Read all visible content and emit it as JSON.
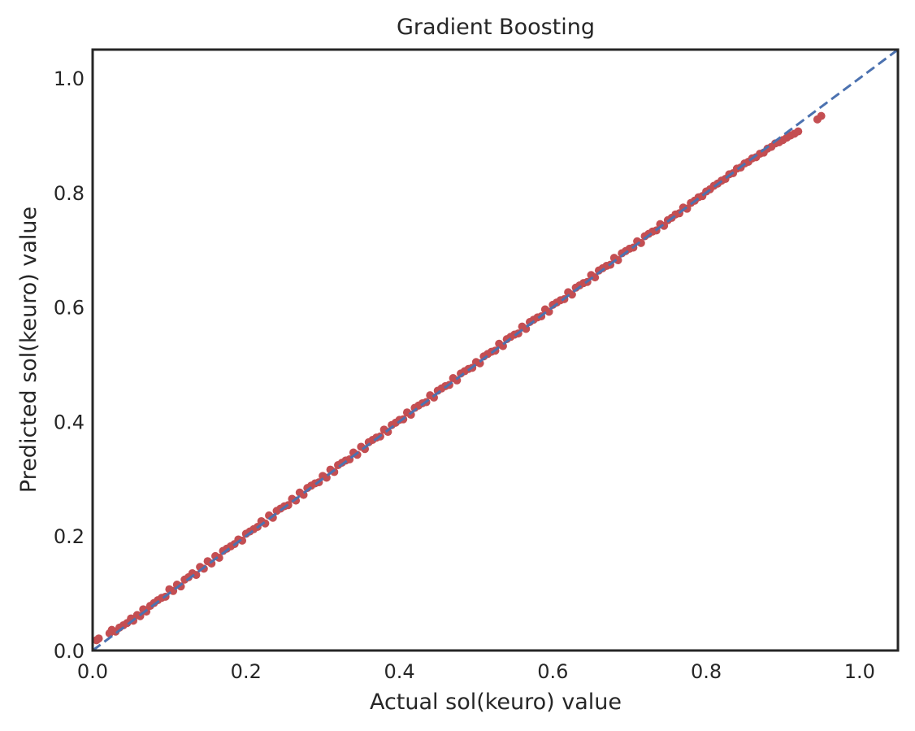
{
  "chart_data": {
    "type": "scatter",
    "title": "Gradient Boosting",
    "xlabel": "Actual sol(keuro) value",
    "ylabel": "Predicted sol(keuro) value",
    "xlim": [
      0.0,
      1.05
    ],
    "ylim": [
      0.0,
      1.05
    ],
    "xticks": [
      "0.0",
      "0.2",
      "0.4",
      "0.6",
      "0.8",
      "1.0"
    ],
    "yticks": [
      "0.0",
      "0.2",
      "0.4",
      "0.6",
      "0.8",
      "1.0"
    ],
    "grid": false,
    "reference_line": {
      "style": "dashed",
      "color": "#4c72b0",
      "from": [
        0.0,
        0.0
      ],
      "to": [
        1.05,
        1.05
      ]
    },
    "point_color": "#c44e52",
    "points": [
      [
        0.005,
        0.018
      ],
      [
        0.008,
        0.021
      ],
      [
        0.022,
        0.03
      ],
      [
        0.025,
        0.036
      ],
      [
        0.03,
        0.033
      ],
      [
        0.035,
        0.04
      ],
      [
        0.04,
        0.044
      ],
      [
        0.045,
        0.048
      ],
      [
        0.05,
        0.056
      ],
      [
        0.053,
        0.052
      ],
      [
        0.058,
        0.062
      ],
      [
        0.062,
        0.06
      ],
      [
        0.066,
        0.072
      ],
      [
        0.07,
        0.068
      ],
      [
        0.075,
        0.078
      ],
      [
        0.08,
        0.083
      ],
      [
        0.085,
        0.088
      ],
      [
        0.09,
        0.092
      ],
      [
        0.095,
        0.094
      ],
      [
        0.1,
        0.107
      ],
      [
        0.105,
        0.104
      ],
      [
        0.11,
        0.115
      ],
      [
        0.115,
        0.112
      ],
      [
        0.12,
        0.124
      ],
      [
        0.125,
        0.128
      ],
      [
        0.13,
        0.135
      ],
      [
        0.135,
        0.132
      ],
      [
        0.14,
        0.146
      ],
      [
        0.145,
        0.143
      ],
      [
        0.15,
        0.156
      ],
      [
        0.155,
        0.152
      ],
      [
        0.16,
        0.165
      ],
      [
        0.165,
        0.162
      ],
      [
        0.17,
        0.174
      ],
      [
        0.175,
        0.178
      ],
      [
        0.18,
        0.182
      ],
      [
        0.185,
        0.186
      ],
      [
        0.19,
        0.194
      ],
      [
        0.195,
        0.192
      ],
      [
        0.2,
        0.204
      ],
      [
        0.205,
        0.208
      ],
      [
        0.21,
        0.212
      ],
      [
        0.215,
        0.216
      ],
      [
        0.22,
        0.226
      ],
      [
        0.225,
        0.222
      ],
      [
        0.23,
        0.236
      ],
      [
        0.235,
        0.232
      ],
      [
        0.24,
        0.244
      ],
      [
        0.245,
        0.248
      ],
      [
        0.25,
        0.252
      ],
      [
        0.255,
        0.254
      ],
      [
        0.26,
        0.265
      ],
      [
        0.265,
        0.262
      ],
      [
        0.27,
        0.276
      ],
      [
        0.275,
        0.272
      ],
      [
        0.28,
        0.284
      ],
      [
        0.285,
        0.288
      ],
      [
        0.29,
        0.292
      ],
      [
        0.295,
        0.294
      ],
      [
        0.3,
        0.305
      ],
      [
        0.305,
        0.302
      ],
      [
        0.31,
        0.316
      ],
      [
        0.315,
        0.312
      ],
      [
        0.32,
        0.324
      ],
      [
        0.325,
        0.328
      ],
      [
        0.33,
        0.332
      ],
      [
        0.335,
        0.334
      ],
      [
        0.34,
        0.346
      ],
      [
        0.345,
        0.342
      ],
      [
        0.35,
        0.356
      ],
      [
        0.355,
        0.352
      ],
      [
        0.36,
        0.364
      ],
      [
        0.365,
        0.368
      ],
      [
        0.37,
        0.372
      ],
      [
        0.375,
        0.374
      ],
      [
        0.38,
        0.386
      ],
      [
        0.385,
        0.382
      ],
      [
        0.39,
        0.394
      ],
      [
        0.395,
        0.398
      ],
      [
        0.4,
        0.403
      ],
      [
        0.405,
        0.404
      ],
      [
        0.41,
        0.416
      ],
      [
        0.415,
        0.412
      ],
      [
        0.42,
        0.424
      ],
      [
        0.425,
        0.428
      ],
      [
        0.43,
        0.432
      ],
      [
        0.435,
        0.434
      ],
      [
        0.44,
        0.446
      ],
      [
        0.445,
        0.442
      ],
      [
        0.45,
        0.454
      ],
      [
        0.455,
        0.458
      ],
      [
        0.46,
        0.462
      ],
      [
        0.465,
        0.464
      ],
      [
        0.47,
        0.476
      ],
      [
        0.475,
        0.472
      ],
      [
        0.48,
        0.484
      ],
      [
        0.485,
        0.488
      ],
      [
        0.49,
        0.492
      ],
      [
        0.495,
        0.494
      ],
      [
        0.5,
        0.504
      ],
      [
        0.505,
        0.502
      ],
      [
        0.51,
        0.514
      ],
      [
        0.515,
        0.518
      ],
      [
        0.52,
        0.522
      ],
      [
        0.525,
        0.524
      ],
      [
        0.53,
        0.536
      ],
      [
        0.535,
        0.532
      ],
      [
        0.54,
        0.544
      ],
      [
        0.545,
        0.548
      ],
      [
        0.55,
        0.552
      ],
      [
        0.555,
        0.554
      ],
      [
        0.56,
        0.566
      ],
      [
        0.565,
        0.562
      ],
      [
        0.57,
        0.574
      ],
      [
        0.575,
        0.578
      ],
      [
        0.58,
        0.582
      ],
      [
        0.585,
        0.584
      ],
      [
        0.59,
        0.596
      ],
      [
        0.595,
        0.592
      ],
      [
        0.6,
        0.604
      ],
      [
        0.605,
        0.608
      ],
      [
        0.61,
        0.612
      ],
      [
        0.615,
        0.614
      ],
      [
        0.62,
        0.626
      ],
      [
        0.625,
        0.622
      ],
      [
        0.63,
        0.634
      ],
      [
        0.635,
        0.638
      ],
      [
        0.64,
        0.642
      ],
      [
        0.645,
        0.644
      ],
      [
        0.65,
        0.656
      ],
      [
        0.655,
        0.652
      ],
      [
        0.66,
        0.664
      ],
      [
        0.665,
        0.668
      ],
      [
        0.67,
        0.672
      ],
      [
        0.675,
        0.674
      ],
      [
        0.68,
        0.686
      ],
      [
        0.685,
        0.682
      ],
      [
        0.69,
        0.694
      ],
      [
        0.695,
        0.698
      ],
      [
        0.7,
        0.702
      ],
      [
        0.705,
        0.704
      ],
      [
        0.71,
        0.715
      ],
      [
        0.715,
        0.712
      ],
      [
        0.72,
        0.724
      ],
      [
        0.725,
        0.728
      ],
      [
        0.73,
        0.732
      ],
      [
        0.735,
        0.734
      ],
      [
        0.74,
        0.745
      ],
      [
        0.745,
        0.742
      ],
      [
        0.75,
        0.752
      ],
      [
        0.755,
        0.756
      ],
      [
        0.76,
        0.762
      ],
      [
        0.765,
        0.764
      ],
      [
        0.77,
        0.774
      ],
      [
        0.775,
        0.772
      ],
      [
        0.78,
        0.782
      ],
      [
        0.785,
        0.786
      ],
      [
        0.79,
        0.792
      ],
      [
        0.795,
        0.794
      ],
      [
        0.8,
        0.802
      ],
      [
        0.805,
        0.806
      ],
      [
        0.81,
        0.812
      ],
      [
        0.815,
        0.816
      ],
      [
        0.82,
        0.821
      ],
      [
        0.825,
        0.824
      ],
      [
        0.83,
        0.832
      ],
      [
        0.835,
        0.834
      ],
      [
        0.84,
        0.842
      ],
      [
        0.845,
        0.844
      ],
      [
        0.85,
        0.851
      ],
      [
        0.855,
        0.854
      ],
      [
        0.86,
        0.86
      ],
      [
        0.865,
        0.862
      ],
      [
        0.87,
        0.868
      ],
      [
        0.875,
        0.87
      ],
      [
        0.88,
        0.877
      ],
      [
        0.885,
        0.88
      ],
      [
        0.89,
        0.886
      ],
      [
        0.895,
        0.888
      ],
      [
        0.9,
        0.892
      ],
      [
        0.905,
        0.896
      ],
      [
        0.91,
        0.9
      ],
      [
        0.915,
        0.903
      ],
      [
        0.92,
        0.907
      ],
      [
        0.945,
        0.928
      ],
      [
        0.95,
        0.934
      ]
    ]
  }
}
